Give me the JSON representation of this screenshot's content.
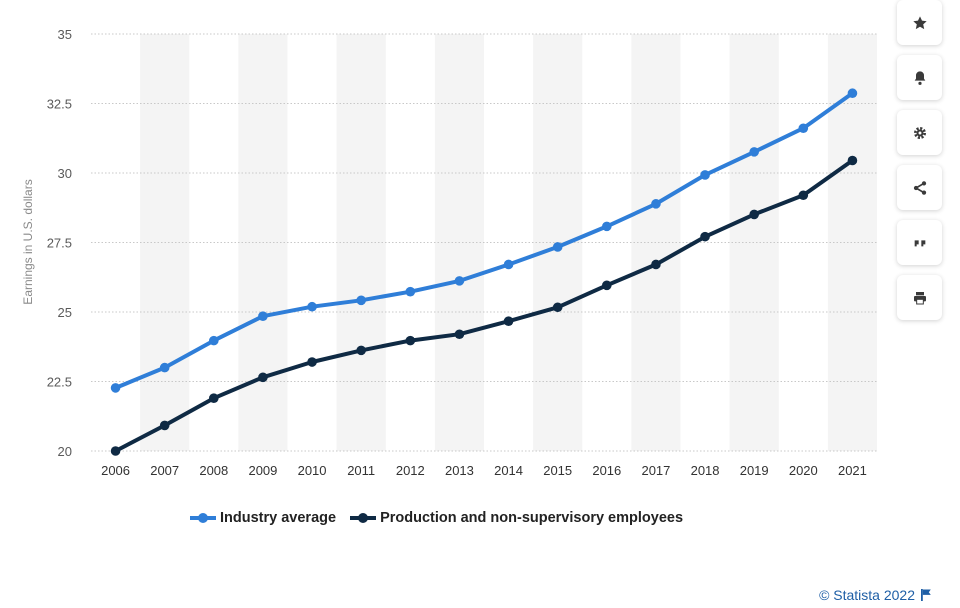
{
  "chart_data": {
    "type": "line",
    "categories": [
      "2006",
      "2007",
      "2008",
      "2009",
      "2010",
      "2011",
      "2012",
      "2013",
      "2014",
      "2015",
      "2016",
      "2017",
      "2018",
      "2019",
      "2020",
      "2021"
    ],
    "series": [
      {
        "name": "Industry average",
        "color": "#2f7ed8",
        "values": [
          22.27,
          23.0,
          23.97,
          24.85,
          25.19,
          25.42,
          25.73,
          26.12,
          26.71,
          27.34,
          28.08,
          28.89,
          29.93,
          30.76,
          31.61,
          32.87
        ]
      },
      {
        "name": "Production and non-supervisory employees",
        "color": "#0f2a44",
        "values": [
          20.0,
          20.92,
          21.9,
          22.65,
          23.2,
          23.62,
          23.97,
          24.2,
          24.67,
          25.17,
          25.96,
          26.71,
          27.71,
          28.51,
          29.2,
          30.45
        ]
      }
    ],
    "yticks": [
      "20",
      "22.5",
      "25",
      "27.5",
      "30",
      "32.5",
      "35"
    ],
    "ylim": [
      20,
      35
    ],
    "ylabel": "Earnings in U.S. dollars",
    "xlabel": "",
    "grid": true,
    "legend_position": "bottom"
  },
  "toolbar": {
    "icons": [
      "star-icon",
      "bell-icon",
      "gear-icon",
      "share-icon",
      "quote-icon",
      "print-icon"
    ]
  },
  "credit": {
    "text": "© Statista 2022"
  }
}
